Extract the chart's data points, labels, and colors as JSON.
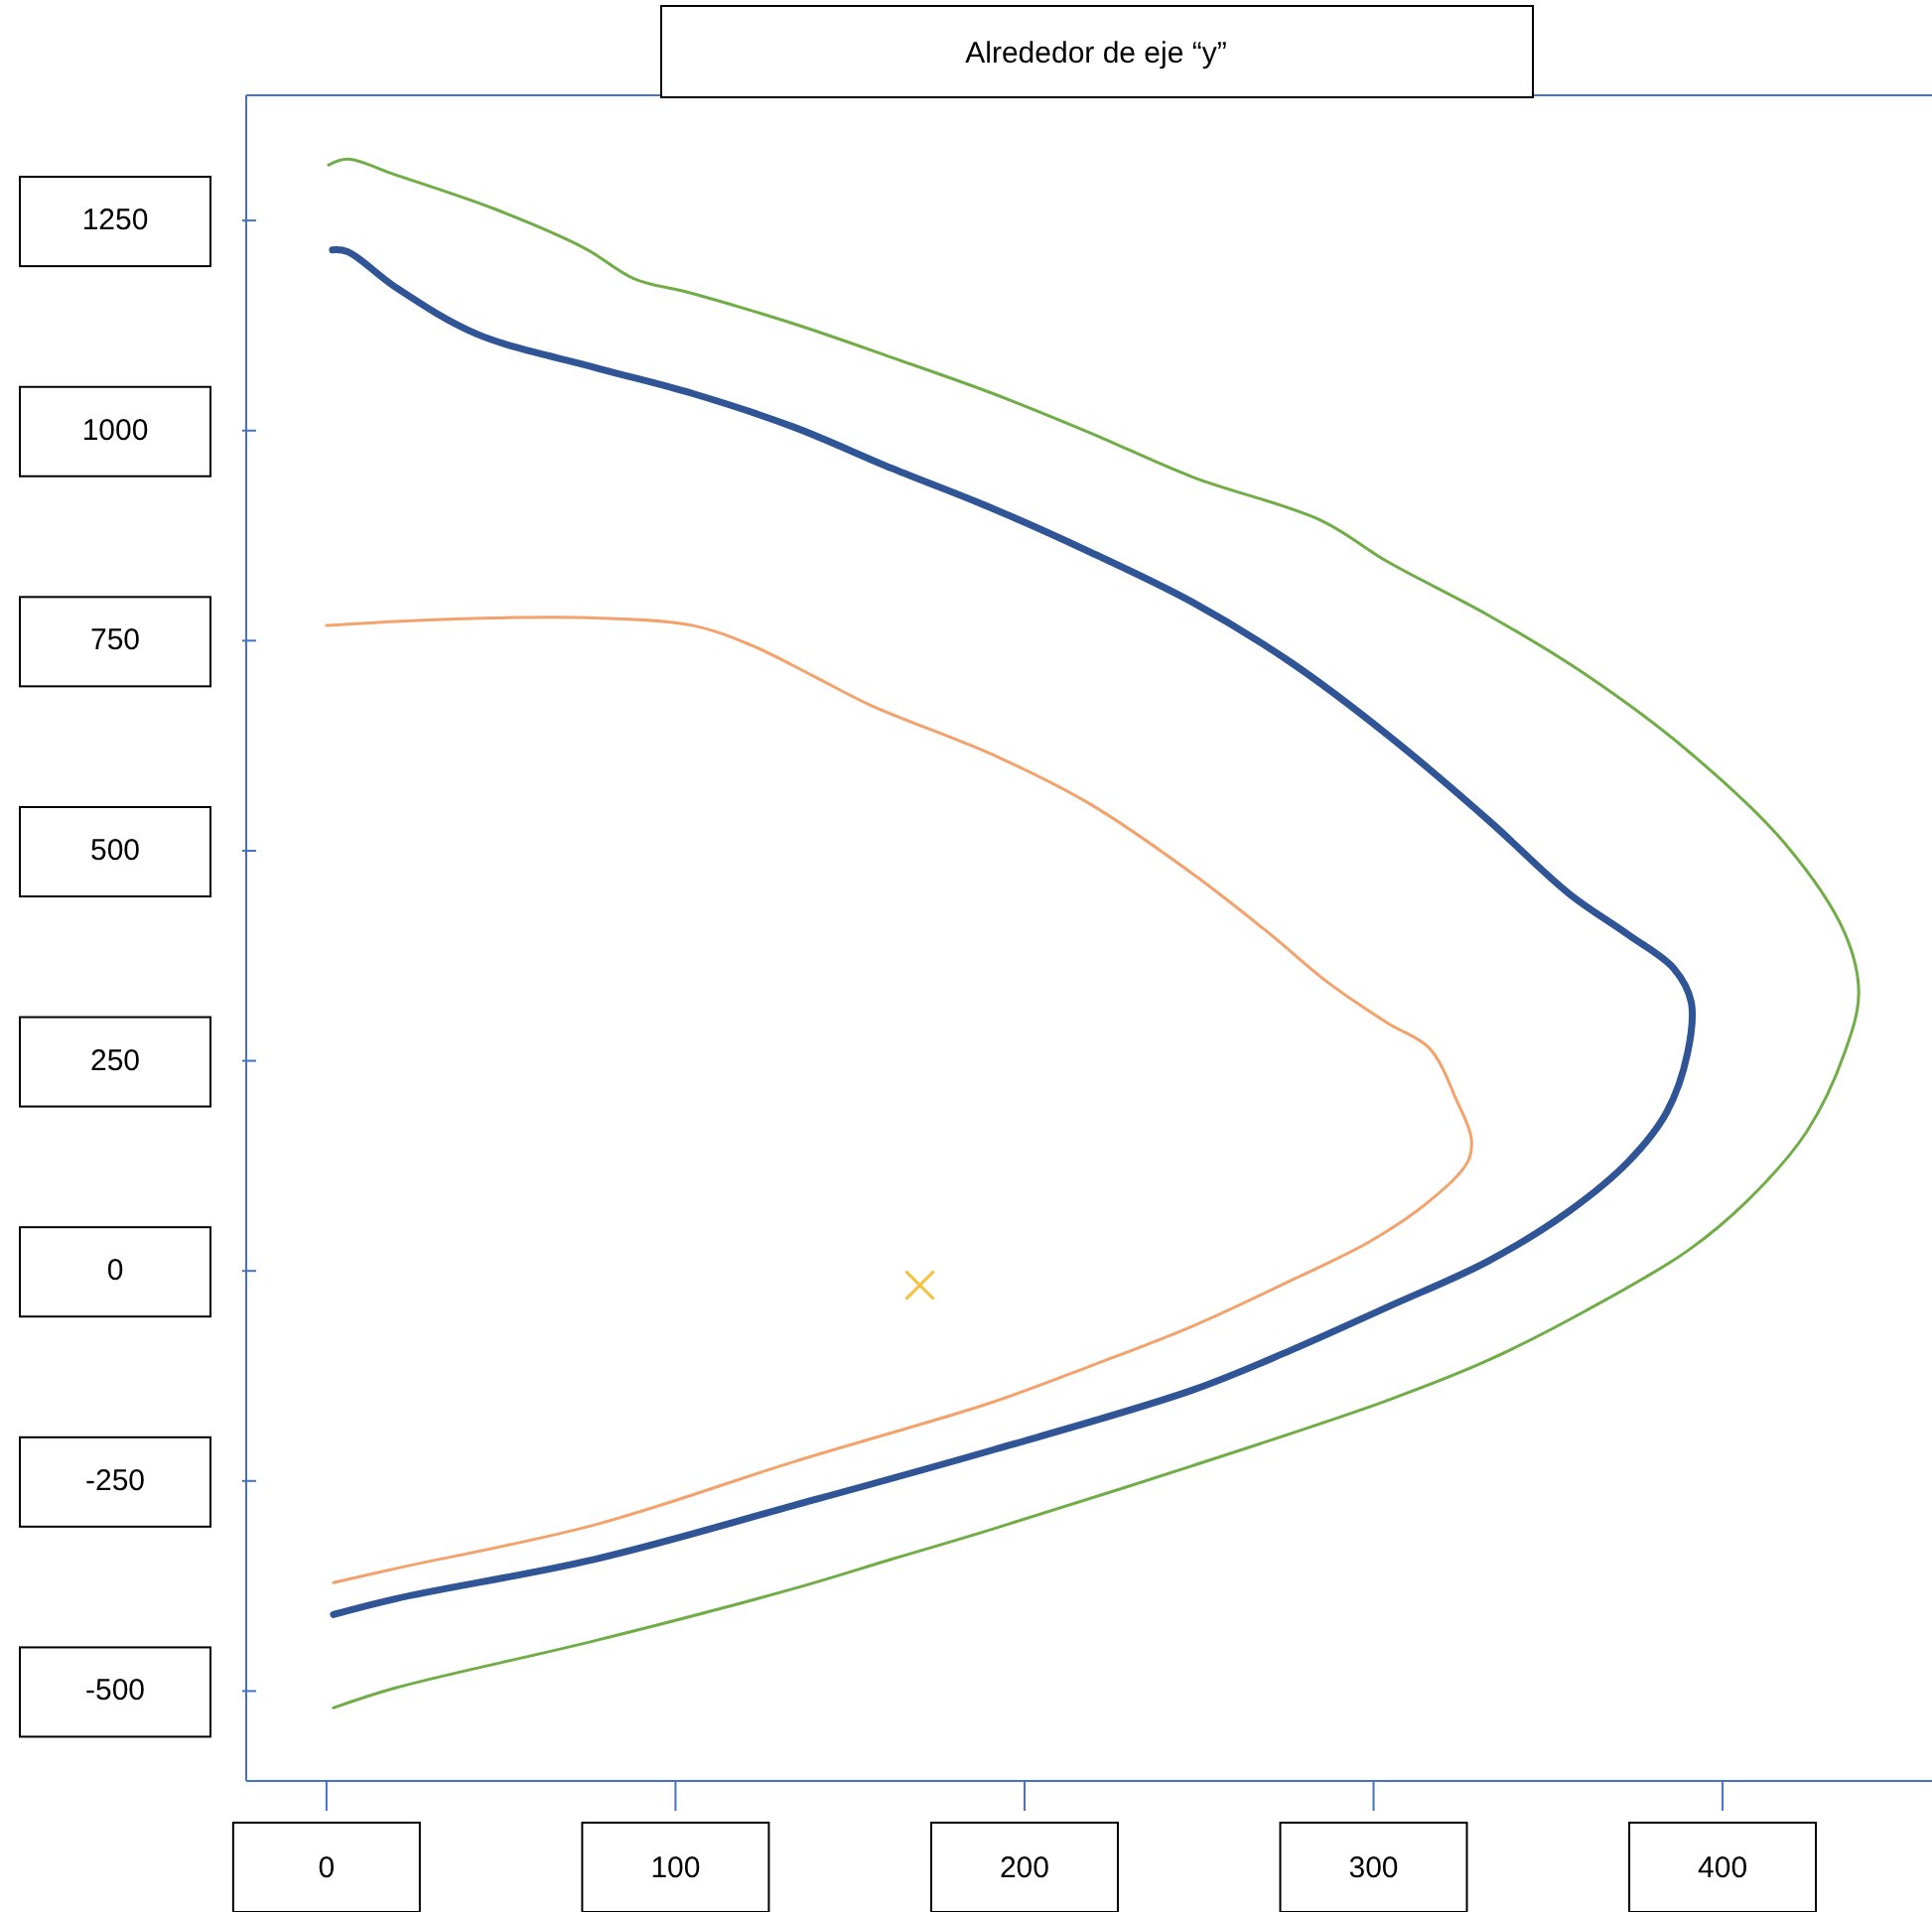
{
  "chart_data": {
    "type": "line",
    "title": "Alrededor de eje “y”",
    "xlim": [
      -23,
      460
    ],
    "ylim": [
      -607,
      1399
    ],
    "xticks": [
      0,
      100,
      200,
      300,
      400
    ],
    "yticks": [
      -500,
      -250,
      0,
      250,
      500,
      750,
      1000,
      1250
    ],
    "grid": false,
    "marker": "none",
    "line_style": "solid",
    "series": [
      {
        "color": "#70ad47",
        "x": [
          0.6,
          6,
          20,
          48,
          74,
          88,
          105,
          134,
          162,
          191,
          219,
          248,
          285,
          304,
          333,
          361,
          390,
          418,
          435,
          439,
          435,
          424,
          407,
          390,
          361,
          333,
          304,
          248,
          191,
          162,
          134,
          77,
          20,
          2
        ],
        "values": [
          1316,
          1323,
          1304,
          1264,
          1217,
          1181,
          1163,
          1127,
          1087,
          1044,
          997,
          945,
          893,
          844,
          780,
          709,
          619,
          508,
          402,
          331,
          260,
          165,
          83,
          24,
          -47,
          -106,
          -154,
          -232,
          -307,
          -343,
          -378,
          -440,
          -496,
          -520
        ]
      },
      {
        "color": "#2f5597",
        "x": [
          1.7,
          6,
          20,
          43,
          77,
          105,
          134,
          162,
          191,
          219,
          248,
          276,
          304,
          333,
          356,
          373,
          386,
          391,
          390,
          384,
          373,
          356,
          333,
          304,
          276,
          248,
          191,
          134,
          77,
          20,
          2
        ],
        "values": [
          1215,
          1213,
          1170,
          1115,
          1075,
          1044,
          1004,
          955,
          907,
          855,
          796,
          725,
          638,
          536,
          449,
          400,
          360,
          320,
          260,
          189,
          130,
          71,
          12,
          -43,
          -95,
          -142,
          -213,
          -279,
          -343,
          -390,
          -409
        ]
      },
      {
        "color": "#f4a26b",
        "x": [
          0,
          20,
          48,
          77,
          105,
          122,
          139,
          156,
          191,
          219,
          248,
          270,
          287,
          304,
          316,
          324,
          328,
          327,
          316,
          299,
          276,
          248,
          219,
          191,
          134,
          77,
          20,
          2
        ],
        "values": [
          768,
          773,
          777,
          777,
          768,
          744,
          709,
          673,
          614,
          555,
          473,
          402,
          343,
          295,
          265,
          201,
          158,
          130,
          83,
          35,
          -12,
          -66,
          -113,
          -156,
          -227,
          -302,
          -354,
          -371
        ]
      },
      {
        "type": "scatter",
        "marker": "cross",
        "color": "#f5c242",
        "x": [
          170
        ],
        "values": [
          -17
        ]
      }
    ]
  }
}
